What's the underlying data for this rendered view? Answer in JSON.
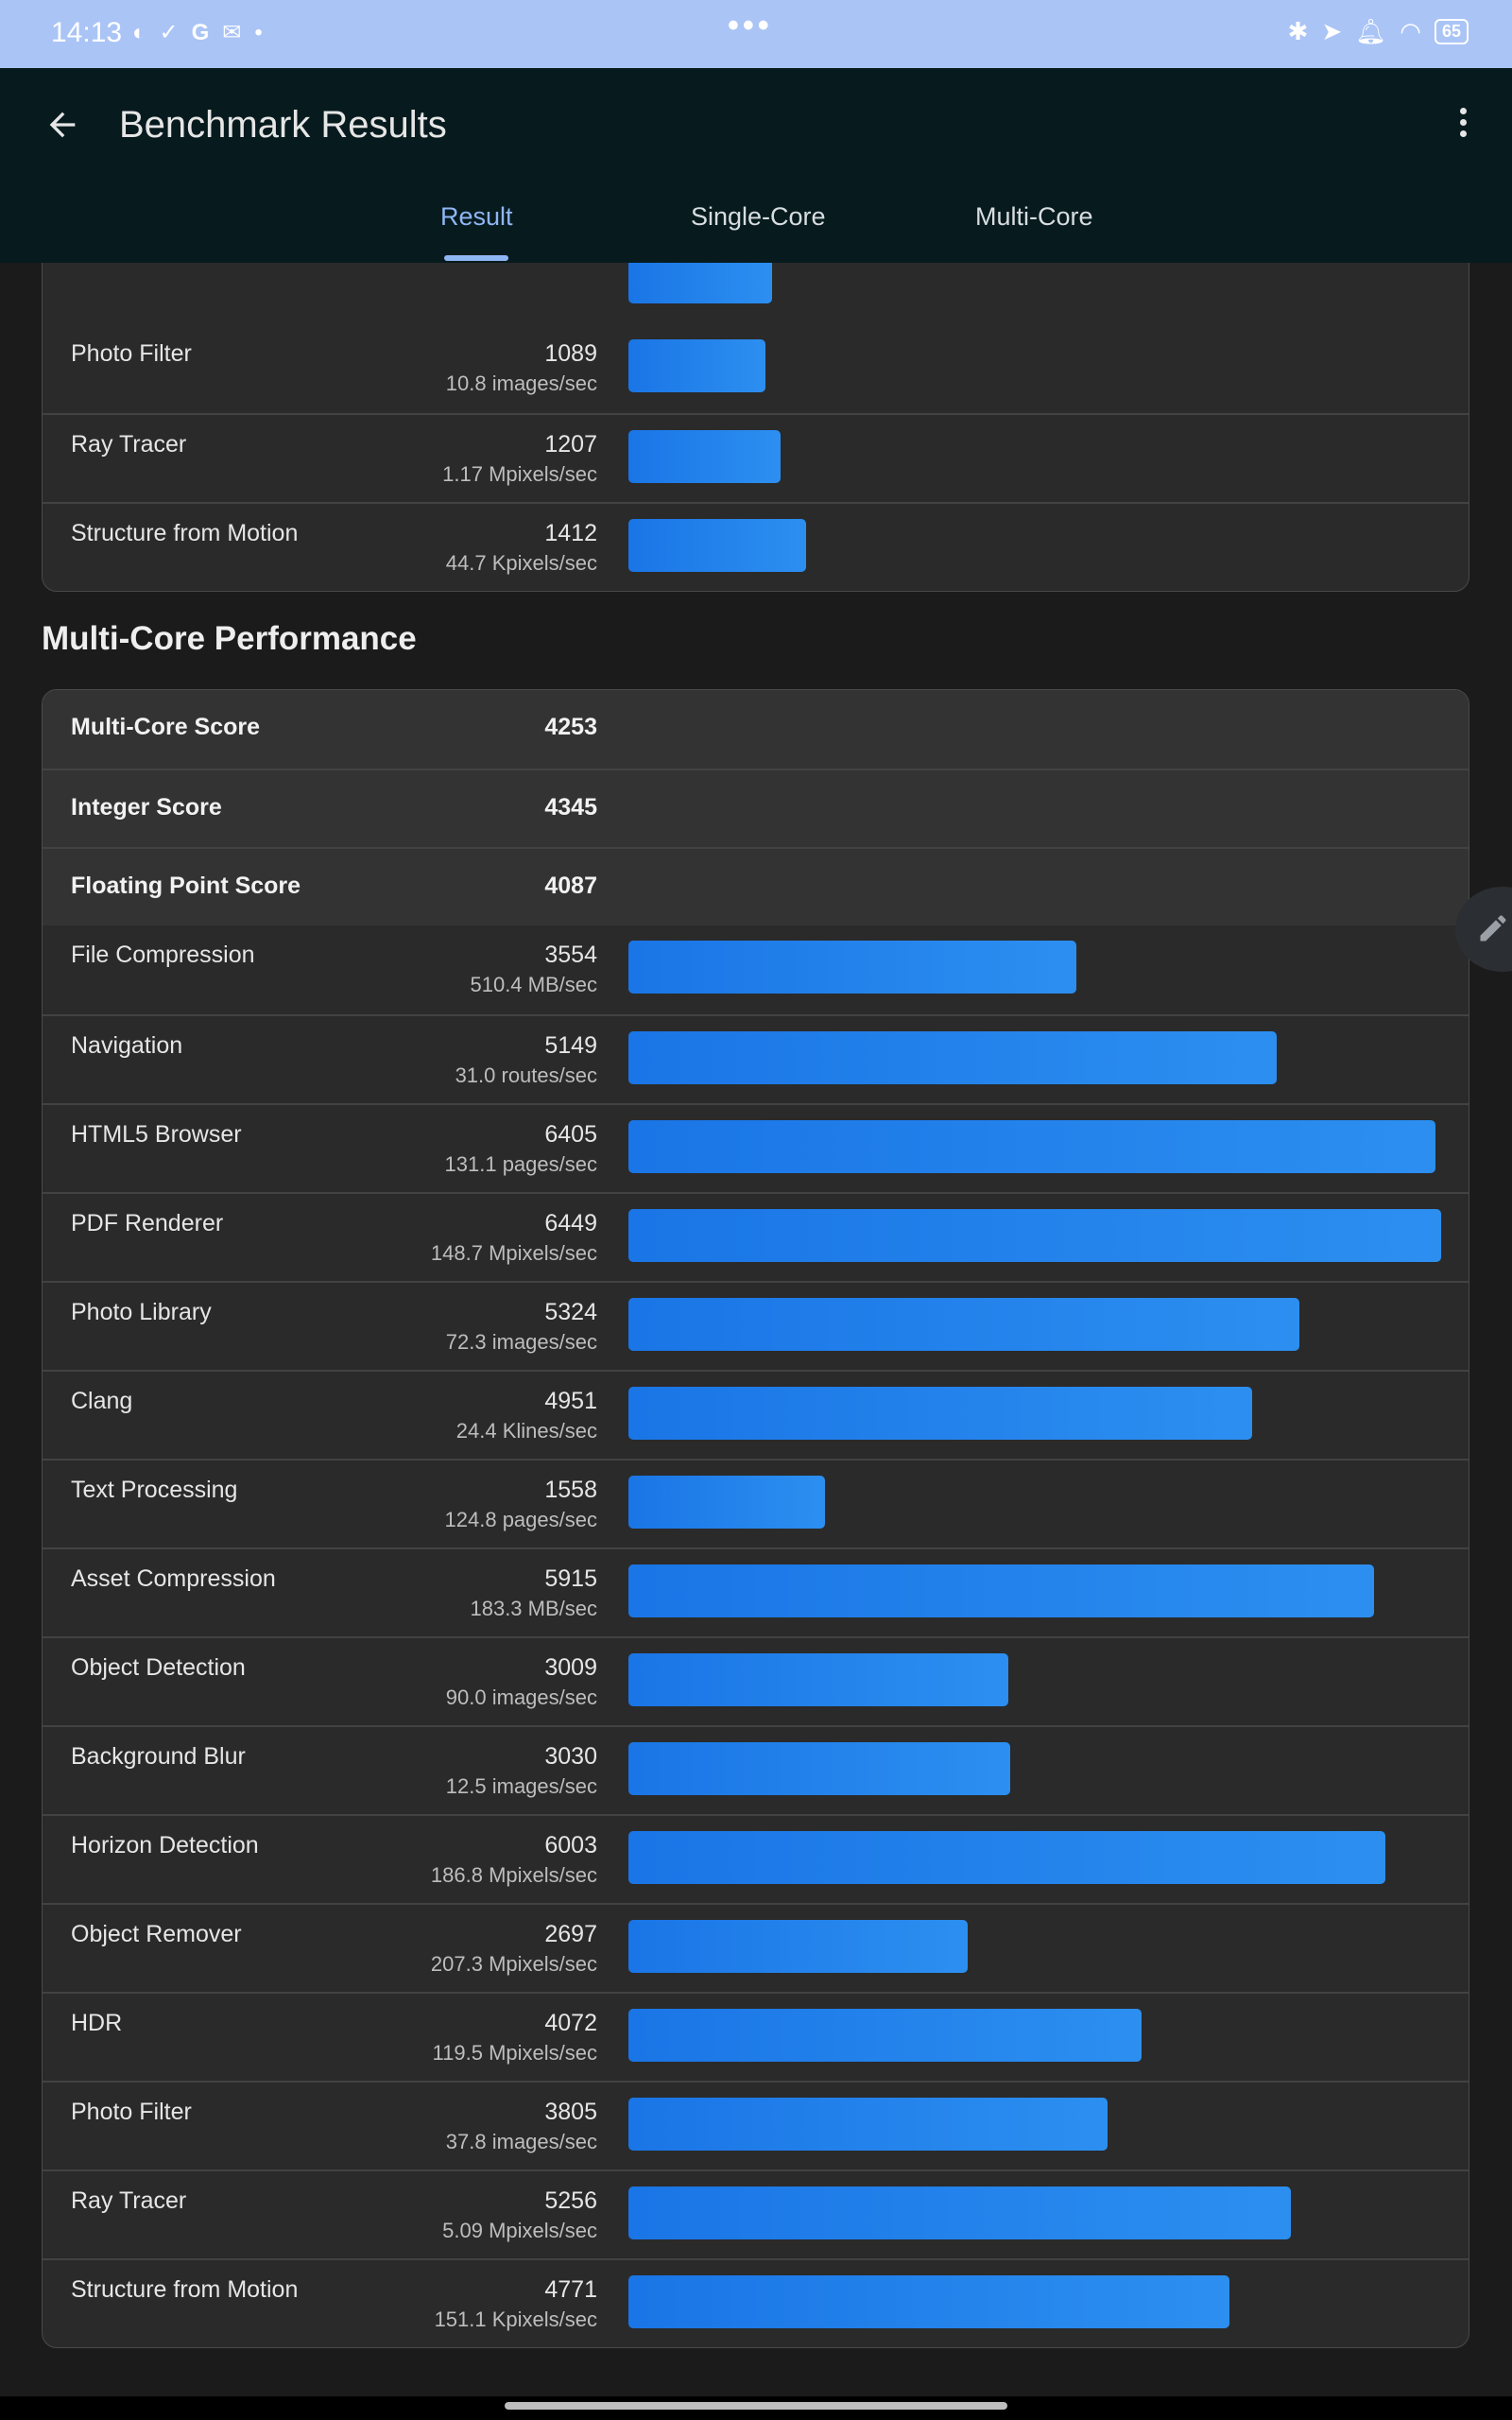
{
  "status_bar": {
    "time": "14:13",
    "battery": "65"
  },
  "app_bar": {
    "title": "Benchmark Results"
  },
  "tabs": [
    {
      "label": "Result"
    },
    {
      "label": "Single-Core"
    },
    {
      "label": "Multi-Core"
    }
  ],
  "single_core_tail": {
    "rows": [
      {
        "name": "Photo Filter",
        "score": "1089",
        "unit": "10.8 images/sec",
        "fill": 0.169
      },
      {
        "name": "Ray Tracer",
        "score": "1207",
        "unit": "1.17 Mpixels/sec",
        "fill": 0.187
      },
      {
        "name": "Structure from Motion",
        "score": "1412",
        "unit": "44.7 Kpixels/sec",
        "fill": 0.219
      }
    ]
  },
  "multi_core": {
    "title": "Multi-Core Performance",
    "summary": [
      {
        "name": "Multi-Core Score",
        "score": "4253"
      },
      {
        "name": "Integer Score",
        "score": "4345"
      },
      {
        "name": "Floating Point Score",
        "score": "4087"
      }
    ],
    "rows": [
      {
        "name": "File Compression",
        "score": "3554",
        "unit": "510.4 MB/sec",
        "fill": 0.551
      },
      {
        "name": "Navigation",
        "score": "5149",
        "unit": "31.0 routes/sec",
        "fill": 0.798
      },
      {
        "name": "HTML5 Browser",
        "score": "6405",
        "unit": "131.1 pages/sec",
        "fill": 0.993
      },
      {
        "name": "PDF Renderer",
        "score": "6449",
        "unit": "148.7 Mpixels/sec",
        "fill": 1.0
      },
      {
        "name": "Photo Library",
        "score": "5324",
        "unit": "72.3 images/sec",
        "fill": 0.826
      },
      {
        "name": "Clang",
        "score": "4951",
        "unit": "24.4 Klines/sec",
        "fill": 0.768
      },
      {
        "name": "Text Processing",
        "score": "1558",
        "unit": "124.8 pages/sec",
        "fill": 0.242
      },
      {
        "name": "Asset Compression",
        "score": "5915",
        "unit": "183.3 MB/sec",
        "fill": 0.917
      },
      {
        "name": "Object Detection",
        "score": "3009",
        "unit": "90.0 images/sec",
        "fill": 0.467
      },
      {
        "name": "Background Blur",
        "score": "3030",
        "unit": "12.5 images/sec",
        "fill": 0.47
      },
      {
        "name": "Horizon Detection",
        "score": "6003",
        "unit": "186.8 Mpixels/sec",
        "fill": 0.931
      },
      {
        "name": "Object Remover",
        "score": "2697",
        "unit": "207.3 Mpixels/sec",
        "fill": 0.418
      },
      {
        "name": "HDR",
        "score": "4072",
        "unit": "119.5 Mpixels/sec",
        "fill": 0.631
      },
      {
        "name": "Photo Filter",
        "score": "3805",
        "unit": "37.8 images/sec",
        "fill": 0.59
      },
      {
        "name": "Ray Tracer",
        "score": "5256",
        "unit": "5.09 Mpixels/sec",
        "fill": 0.815
      },
      {
        "name": "Structure from Motion",
        "score": "4771",
        "unit": "151.1 Kpixels/sec",
        "fill": 0.74
      }
    ]
  },
  "colors": {
    "bar": "#1f82eb",
    "accent": "#8fb6f4",
    "status_bar": "#aac4f6",
    "app_bar": "#071b1f"
  }
}
